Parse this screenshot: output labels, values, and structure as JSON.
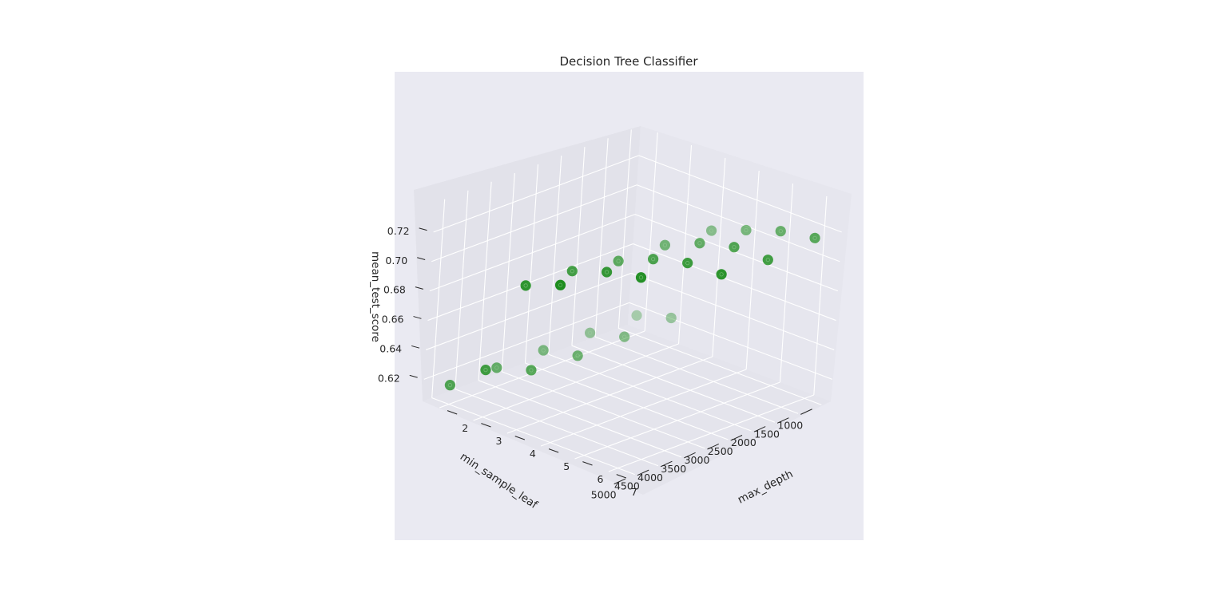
{
  "chart_data": {
    "type": "scatter",
    "projection": "3d",
    "title": "Decision Tree Classifier",
    "xlabel": "min_sample_leaf",
    "ylabel": "max_depth",
    "zlabel": "mean_test_score",
    "x_ticks": [
      "1000",
      "1500",
      "2000",
      "2500",
      "3000",
      "3500",
      "4000",
      "4500",
      "5000"
    ],
    "y_ticks": [
      "2",
      "3",
      "4",
      "5",
      "6",
      "7"
    ],
    "z_ticks": [
      "0.62",
      "0.64",
      "0.66",
      "0.68",
      "0.70",
      "0.72"
    ],
    "xlim": [
      800,
      5200
    ],
    "ylim": [
      1.5,
      7.5
    ],
    "zlim": [
      0.605,
      0.74
    ],
    "grid": true,
    "marker_color": "#008000",
    "background_color": "#eaeaf2",
    "points": [
      {
        "x": 1000,
        "y": 2,
        "z": 0.618
      },
      {
        "x": 2000,
        "y": 2,
        "z": 0.618
      },
      {
        "x": 3000,
        "y": 2,
        "z": 0.618
      },
      {
        "x": 4000,
        "y": 2,
        "z": 0.618
      },
      {
        "x": 5000,
        "y": 2,
        "z": 0.618
      },
      {
        "x": 1000,
        "y": 3,
        "z": 0.625
      },
      {
        "x": 2000,
        "y": 3,
        "z": 0.624
      },
      {
        "x": 3000,
        "y": 3,
        "z": 0.623
      },
      {
        "x": 4000,
        "y": 3,
        "z": 0.625
      },
      {
        "x": 5000,
        "y": 3,
        "z": 0.637
      },
      {
        "x": 1000,
        "y": 4,
        "z": 0.693
      },
      {
        "x": 2000,
        "y": 4,
        "z": 0.695
      },
      {
        "x": 3000,
        "y": 4,
        "z": 0.696
      },
      {
        "x": 4000,
        "y": 4,
        "z": 0.701
      },
      {
        "x": 5000,
        "y": 4,
        "z": 0.703
      },
      {
        "x": 1000,
        "y": 5,
        "z": 0.702
      },
      {
        "x": 2000,
        "y": 5,
        "z": 0.705
      },
      {
        "x": 3000,
        "y": 5,
        "z": 0.706
      },
      {
        "x": 4000,
        "y": 5,
        "z": 0.709
      },
      {
        "x": 5000,
        "y": 5,
        "z": 0.712
      },
      {
        "x": 1000,
        "y": 6,
        "z": 0.71
      },
      {
        "x": 2000,
        "y": 6,
        "z": 0.711
      },
      {
        "x": 3000,
        "y": 6,
        "z": 0.712
      },
      {
        "x": 4000,
        "y": 6,
        "z": 0.714
      },
      {
        "x": 1000,
        "y": 7,
        "z": 0.714
      },
      {
        "x": 2000,
        "y": 7,
        "z": 0.711
      },
      {
        "x": 3000,
        "y": 7,
        "z": 0.713
      }
    ]
  }
}
